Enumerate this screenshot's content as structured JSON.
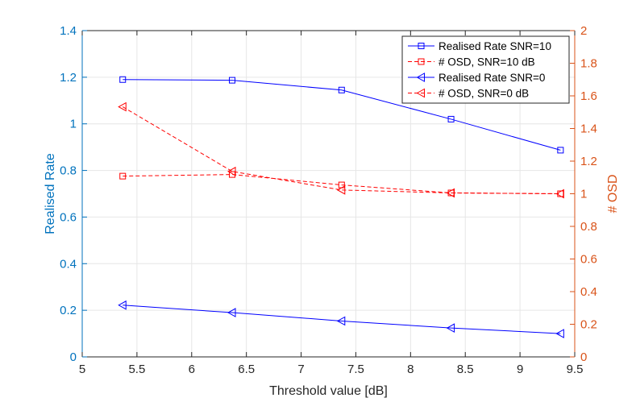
{
  "chart_data": {
    "type": "line",
    "title": "",
    "xlabel": "Threshold value [dB]",
    "ylabel_left": "Realised Rate",
    "ylabel_right": "# OSD",
    "xlim": [
      5,
      9.5
    ],
    "ylim_left": [
      0,
      1.4
    ],
    "ylim_right": [
      0,
      2
    ],
    "grid": true,
    "legend_location": "top-right",
    "x_ticks": [
      "5",
      "5.5",
      "6",
      "6.5",
      "7",
      "7.5",
      "8",
      "8.5",
      "9",
      "9.5"
    ],
    "left_ticks": [
      "0",
      "0.2",
      "0.4",
      "0.6",
      "0.8",
      "1",
      "1.2",
      "1.4"
    ],
    "right_ticks": [
      "0",
      "0.2",
      "0.4",
      "0.6",
      "0.8",
      "1",
      "1.2",
      "1.4",
      "1.6",
      "1.8",
      "2"
    ],
    "x": [
      5.37,
      6.37,
      7.37,
      8.37,
      9.37
    ],
    "series": [
      {
        "name": "Realised Rate SNR=10",
        "axis": "left",
        "marker": "square",
        "style": "solid",
        "color": "#0000FF",
        "values": [
          1.19,
          1.187,
          1.145,
          1.02,
          0.887
        ]
      },
      {
        "name": "# OSD, SNR=10 dB",
        "axis": "right",
        "marker": "square",
        "style": "dashed",
        "color": "#FF0000",
        "values": [
          1.108,
          1.118,
          1.054,
          1.005,
          1.0
        ]
      },
      {
        "name": "Realised Rate SNR=0",
        "axis": "left",
        "marker": "triangle-left",
        "style": "solid",
        "color": "#0000FF",
        "values": [
          0.222,
          0.19,
          0.154,
          0.124,
          0.1
        ]
      },
      {
        "name": "# OSD, SNR=0 dB",
        "axis": "right",
        "marker": "triangle-left",
        "style": "dashed",
        "color": "#FF0000",
        "values": [
          1.533,
          1.137,
          1.023,
          1.005,
          1.0
        ]
      }
    ],
    "colors": {
      "left_axis": "#0072BD",
      "right_axis": "#D95319",
      "x_axis": "#262626",
      "grid": "#E6E6E6"
    }
  }
}
